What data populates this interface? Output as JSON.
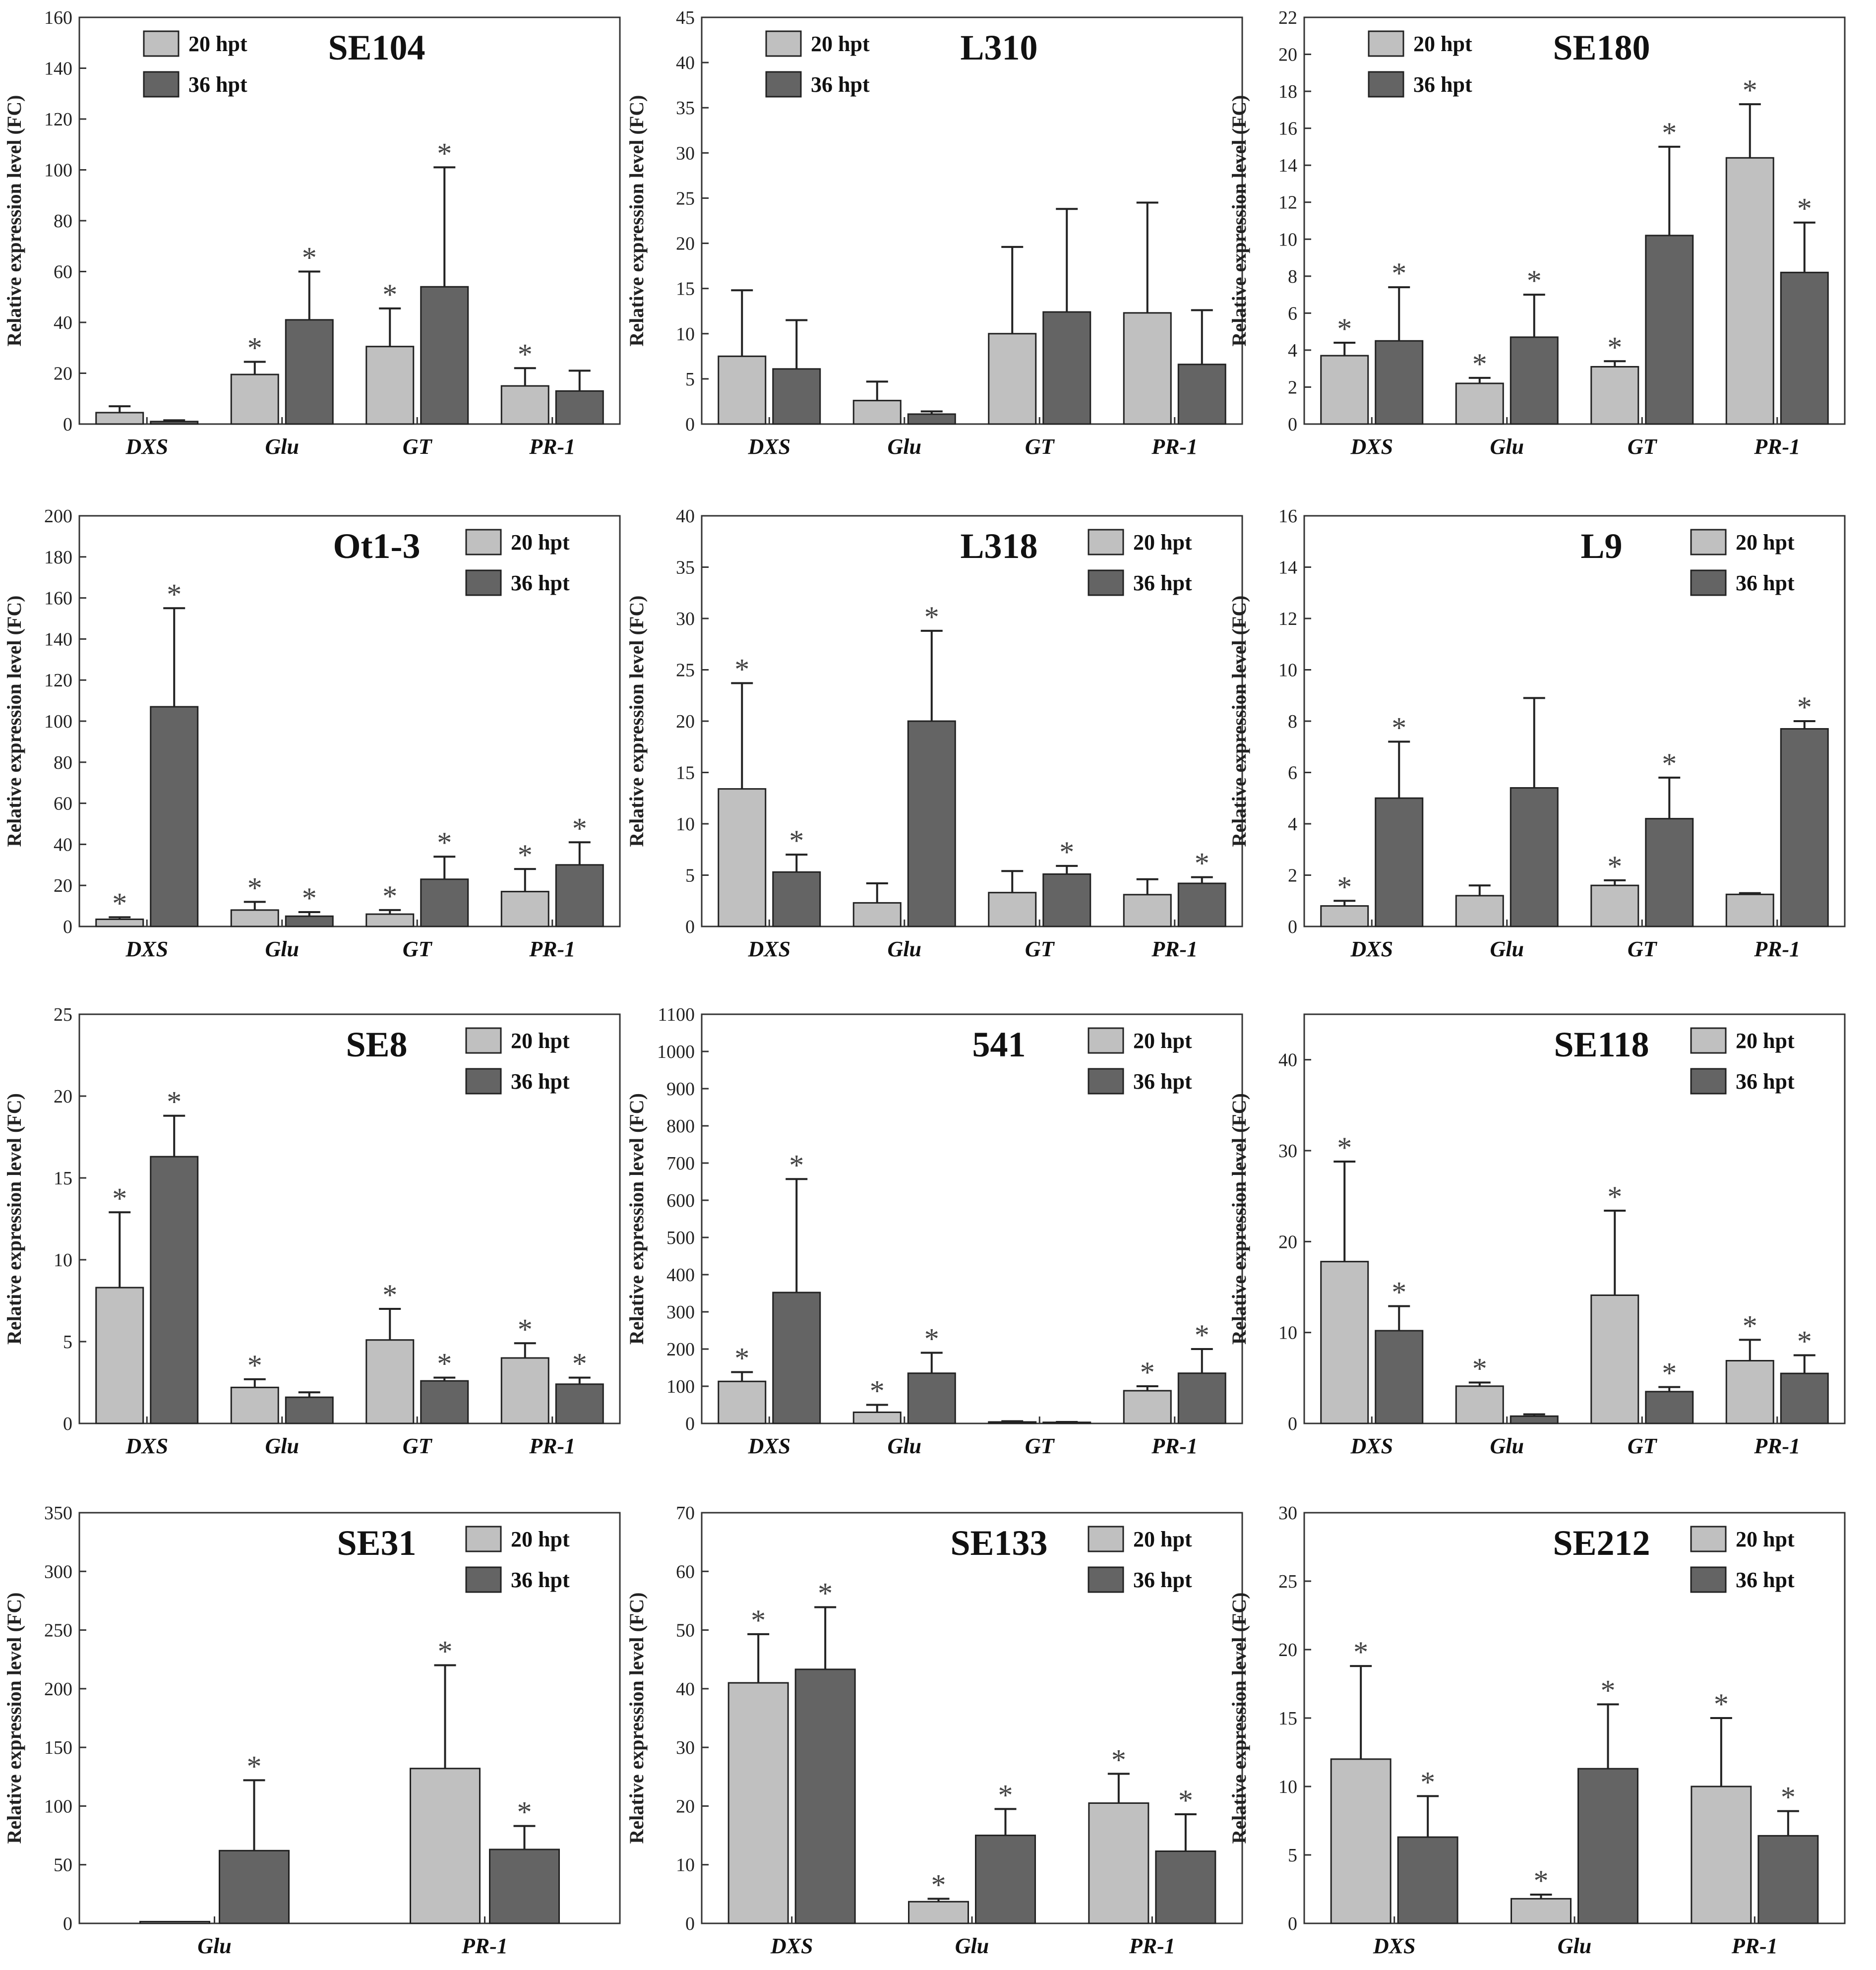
{
  "figure": {
    "series_names": [
      "20 hpt",
      "36 hpt"
    ],
    "colors": {
      "s20": "#c0c0c0",
      "s36": "#646464",
      "axis": "#333333",
      "star": "#444444"
    }
  },
  "chart_data": [
    {
      "type": "bar",
      "title": "SE104",
      "ylabel": "Relative expression level (FC)",
      "ylim": [
        0,
        160
      ],
      "ytick_step": 20,
      "legend": "top-left",
      "categories": [
        "DXS",
        "Glu",
        "GT",
        "PR-1"
      ],
      "series": [
        {
          "name": "20 hpt",
          "values": [
            4.5,
            19.5,
            30.5,
            15
          ],
          "errors": [
            2.5,
            5,
            15,
            7
          ],
          "sig": [
            false,
            true,
            true,
            true
          ]
        },
        {
          "name": "36 hpt",
          "values": [
            1,
            41,
            54,
            13
          ],
          "errors": [
            0.5,
            19,
            47,
            8
          ],
          "sig": [
            false,
            true,
            true,
            false
          ]
        }
      ]
    },
    {
      "type": "bar",
      "title": "L310",
      "ylabel": "Relative expression level (FC)",
      "ylim": [
        0,
        45
      ],
      "ytick_step": 5,
      "legend": "top-left",
      "categories": [
        "DXS",
        "Glu",
        "GT",
        "PR-1"
      ],
      "series": [
        {
          "name": "20 hpt",
          "values": [
            7.5,
            2.6,
            10,
            12.3
          ],
          "errors": [
            7.3,
            2.1,
            9.6,
            12.2
          ],
          "sig": [
            false,
            false,
            false,
            false
          ]
        },
        {
          "name": "36 hpt",
          "values": [
            6.1,
            1.1,
            12.4,
            6.6
          ],
          "errors": [
            5.4,
            0.3,
            11.4,
            6
          ],
          "sig": [
            false,
            false,
            false,
            false
          ]
        }
      ]
    },
    {
      "type": "bar",
      "title": "SE180",
      "ylabel": "Relative expression level (FC)",
      "ylim": [
        0,
        22
      ],
      "ytick_step": 2,
      "legend": "top-left",
      "categories": [
        "DXS",
        "Glu",
        "GT",
        "PR-1"
      ],
      "series": [
        {
          "name": "20 hpt",
          "values": [
            3.7,
            2.2,
            3.1,
            14.4
          ],
          "errors": [
            0.7,
            0.3,
            0.3,
            2.9
          ],
          "sig": [
            true,
            true,
            true,
            true
          ]
        },
        {
          "name": "36 hpt",
          "values": [
            4.5,
            4.7,
            10.2,
            8.2
          ],
          "errors": [
            2.9,
            2.3,
            4.8,
            2.7
          ],
          "sig": [
            true,
            true,
            true,
            true
          ]
        }
      ]
    },
    {
      "type": "bar",
      "title": "Ot1-3",
      "ylabel": "Relative expression level (FC)",
      "ylim": [
        0,
        200
      ],
      "ytick_step": 20,
      "legend": "top-right",
      "categories": [
        "DXS",
        "Glu",
        "GT",
        "PR-1"
      ],
      "series": [
        {
          "name": "20 hpt",
          "values": [
            3.5,
            8,
            6,
            17
          ],
          "errors": [
            1,
            4,
            2,
            11
          ],
          "sig": [
            true,
            true,
            true,
            true
          ]
        },
        {
          "name": "36 hpt",
          "values": [
            107,
            5,
            23,
            30
          ],
          "errors": [
            48,
            2,
            11,
            11
          ],
          "sig": [
            true,
            true,
            true,
            true
          ]
        }
      ]
    },
    {
      "type": "bar",
      "title": "L318",
      "ylabel": "Relative expression level (FC)",
      "ylim": [
        0,
        40
      ],
      "ytick_step": 5,
      "legend": "top-right",
      "categories": [
        "DXS",
        "Glu",
        "GT",
        "PR-1"
      ],
      "series": [
        {
          "name": "20 hpt",
          "values": [
            13.4,
            2.3,
            3.3,
            3.1
          ],
          "errors": [
            10.3,
            1.9,
            2.1,
            1.5
          ],
          "sig": [
            true,
            false,
            false,
            false
          ]
        },
        {
          "name": "36 hpt",
          "values": [
            5.3,
            20,
            5.1,
            4.2
          ],
          "errors": [
            1.7,
            8.8,
            0.8,
            0.6
          ],
          "sig": [
            true,
            true,
            true,
            true
          ]
        }
      ]
    },
    {
      "type": "bar",
      "title": "L9",
      "ylabel": "Relative expression level (FC)",
      "ylim": [
        0,
        16
      ],
      "ytick_step": 2,
      "legend": "top-right",
      "categories": [
        "DXS",
        "Glu",
        "GT",
        "PR-1"
      ],
      "series": [
        {
          "name": "20 hpt",
          "values": [
            0.8,
            1.2,
            1.6,
            1.25
          ],
          "errors": [
            0.2,
            0.4,
            0.2,
            0.05
          ],
          "sig": [
            true,
            false,
            true,
            false
          ]
        },
        {
          "name": "36 hpt",
          "values": [
            5,
            5.4,
            4.2,
            7.7
          ],
          "errors": [
            2.2,
            3.5,
            1.6,
            0.3
          ],
          "sig": [
            true,
            false,
            true,
            true
          ]
        }
      ]
    },
    {
      "type": "bar",
      "title": "SE8",
      "ylabel": "Relative expression level (FC)",
      "ylim": [
        0,
        25
      ],
      "ytick_step": 5,
      "legend": "top-right",
      "categories": [
        "DXS",
        "Glu",
        "GT",
        "PR-1"
      ],
      "series": [
        {
          "name": "20 hpt",
          "values": [
            8.3,
            2.2,
            5.1,
            4
          ],
          "errors": [
            4.6,
            0.5,
            1.9,
            0.9
          ],
          "sig": [
            true,
            true,
            true,
            true
          ]
        },
        {
          "name": "36 hpt",
          "values": [
            16.3,
            1.6,
            2.6,
            2.4
          ],
          "errors": [
            2.5,
            0.3,
            0.2,
            0.4
          ],
          "sig": [
            true,
            false,
            true,
            true
          ]
        }
      ]
    },
    {
      "type": "bar",
      "title": "541",
      "ylabel": "Relative expression level (FC)",
      "ylim": [
        0,
        1100
      ],
      "ytick_step": 100,
      "legend": "top-right",
      "categories": [
        "DXS",
        "Glu",
        "GT",
        "PR-1"
      ],
      "series": [
        {
          "name": "20 hpt",
          "values": [
            113,
            30,
            4,
            88
          ],
          "errors": [
            25,
            20,
            2,
            12
          ],
          "sig": [
            true,
            true,
            false,
            true
          ]
        },
        {
          "name": "36 hpt",
          "values": [
            352,
            135,
            3,
            135
          ],
          "errors": [
            305,
            55,
            1,
            65
          ],
          "sig": [
            true,
            true,
            false,
            true
          ]
        }
      ]
    },
    {
      "type": "bar",
      "title": "SE118",
      "ylabel": "Relative expression level (FC)",
      "ylim": [
        0,
        45
      ],
      "ytick_step": 10,
      "legend": "top-right",
      "categories": [
        "DXS",
        "Glu",
        "GT",
        "PR-1"
      ],
      "series": [
        {
          "name": "20 hpt",
          "values": [
            17.8,
            4.1,
            14.1,
            6.9
          ],
          "errors": [
            11,
            0.4,
            9.3,
            2.3
          ],
          "sig": [
            true,
            true,
            true,
            true
          ]
        },
        {
          "name": "36 hpt",
          "values": [
            10.2,
            0.8,
            3.5,
            5.5
          ],
          "errors": [
            2.7,
            0.2,
            0.5,
            2
          ],
          "sig": [
            true,
            false,
            true,
            true
          ]
        }
      ]
    },
    {
      "type": "bar",
      "title": "SE31",
      "ylabel": "Relative expression level (FC)",
      "ylim": [
        0,
        350
      ],
      "ytick_step": 50,
      "legend": "top-right",
      "categories": [
        "Glu",
        "PR-1"
      ],
      "series": [
        {
          "name": "20 hpt",
          "values": [
            1.5,
            132
          ],
          "errors": [
            0,
            88
          ],
          "sig": [
            false,
            true
          ]
        },
        {
          "name": "36 hpt",
          "values": [
            62,
            63
          ],
          "errors": [
            60,
            20
          ],
          "sig": [
            true,
            true
          ]
        }
      ]
    },
    {
      "type": "bar",
      "title": "SE133",
      "ylabel": "Relative expression level (FC)",
      "ylim": [
        0,
        70
      ],
      "ytick_step": 10,
      "legend": "top-right",
      "categories": [
        "DXS",
        "Glu",
        "PR-1"
      ],
      "series": [
        {
          "name": "20 hpt",
          "values": [
            41,
            3.7,
            20.5
          ],
          "errors": [
            8.3,
            0.5,
            5
          ],
          "sig": [
            true,
            true,
            true
          ]
        },
        {
          "name": "36 hpt",
          "values": [
            43.3,
            15,
            12.3
          ],
          "errors": [
            10.6,
            4.5,
            6.3
          ],
          "sig": [
            true,
            true,
            true
          ]
        }
      ]
    },
    {
      "type": "bar",
      "title": "SE212",
      "ylabel": "Relative expression level (FC)",
      "ylim": [
        0,
        30
      ],
      "ytick_step": 5,
      "legend": "top-right",
      "categories": [
        "DXS",
        "Glu",
        "PR-1"
      ],
      "series": [
        {
          "name": "20 hpt",
          "values": [
            12,
            1.8,
            10
          ],
          "errors": [
            6.8,
            0.3,
            5
          ],
          "sig": [
            true,
            true,
            true
          ]
        },
        {
          "name": "36 hpt",
          "values": [
            6.3,
            11.3,
            6.4
          ],
          "errors": [
            3,
            4.7,
            1.8
          ],
          "sig": [
            true,
            true,
            true
          ]
        }
      ]
    }
  ]
}
